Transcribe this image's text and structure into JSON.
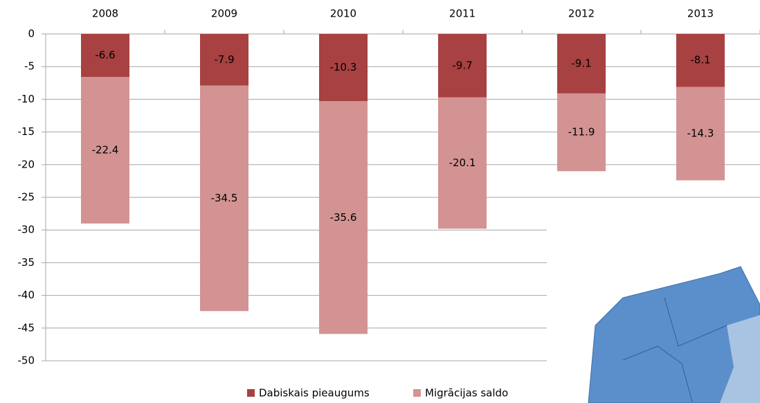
{
  "chart_data": {
    "type": "stacked_bar",
    "categories": [
      "2008",
      "2009",
      "2010",
      "2011",
      "2012",
      "2013"
    ],
    "series": [
      {
        "name": "Dabiskais pieaugums",
        "color": "#a84141",
        "values": [
          -6.6,
          -7.9,
          -10.3,
          -9.7,
          -9.1,
          -8.1
        ]
      },
      {
        "name": "Migrācijas saldo",
        "color": "#d39393",
        "values": [
          -22.4,
          -34.5,
          -35.6,
          -20.1,
          -11.9,
          -14.3
        ]
      }
    ],
    "ylim": [
      -50,
      0
    ],
    "yticks": [
      0,
      -5,
      -10,
      -15,
      -20,
      -25,
      -30,
      -35,
      -40,
      -45,
      -50
    ],
    "grid": true,
    "legend": "bottom"
  }
}
